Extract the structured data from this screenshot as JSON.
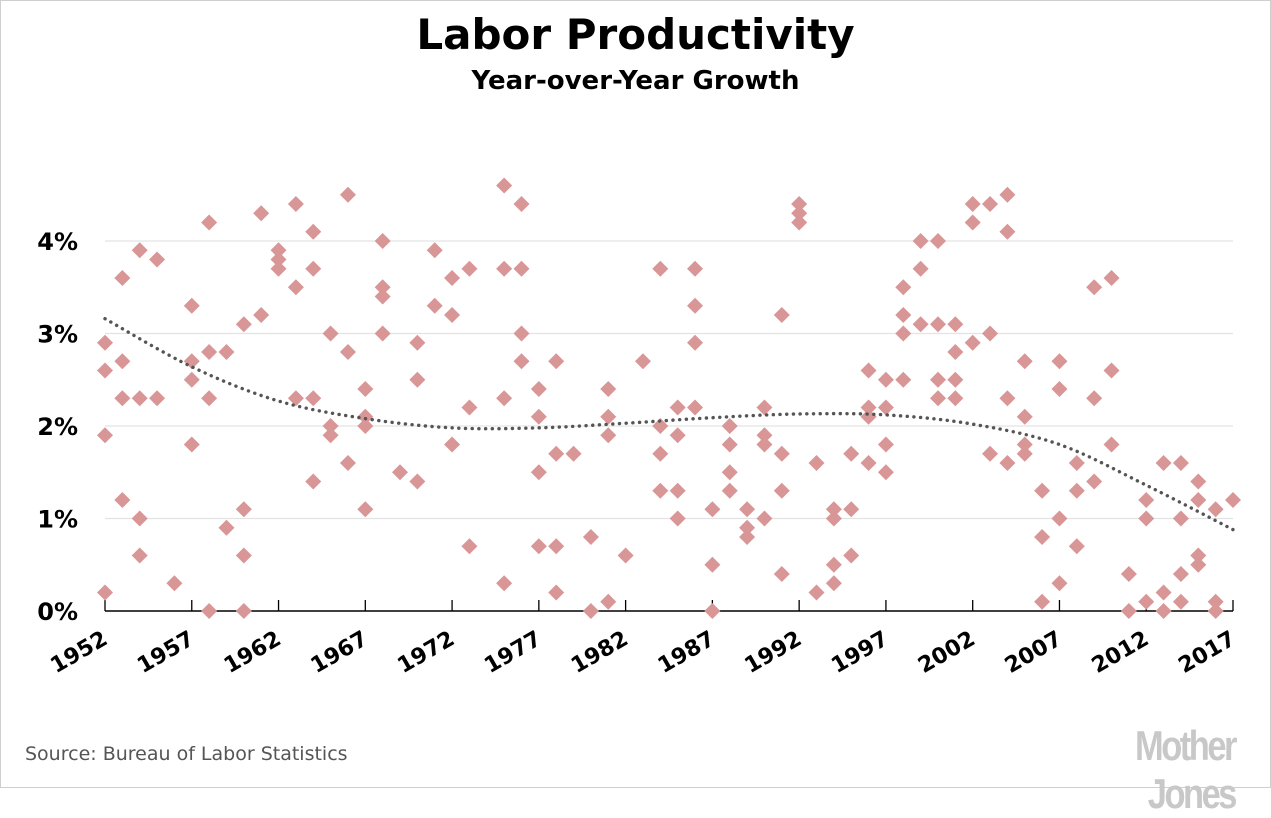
{
  "header": {
    "title": "Labor Productivity",
    "subtitle": "Year-over-Year Growth"
  },
  "footer": {
    "source": "Source: Bureau of Labor Statistics",
    "logo": "Mother Jones"
  },
  "colors": {
    "marker": "#d99696",
    "trend": "#555555",
    "grid": "#e3e3e3",
    "axis": "#000000"
  },
  "chart_data": {
    "type": "scatter",
    "title": "Labor Productivity",
    "subtitle": "Year-over-Year Growth",
    "xlabel": "",
    "ylabel": "",
    "xlim": [
      1952,
      2017
    ],
    "ylim": [
      0,
      4
    ],
    "grid": true,
    "legend": "none",
    "y_ticks": [
      {
        "value": 0,
        "label": "0%"
      },
      {
        "value": 1,
        "label": "1%"
      },
      {
        "value": 2,
        "label": "2%"
      },
      {
        "value": 3,
        "label": "3%"
      },
      {
        "value": 4,
        "label": "4%"
      }
    ],
    "x_ticks": [
      {
        "value": 1952,
        "label": "1952"
      },
      {
        "value": 1957,
        "label": "1957"
      },
      {
        "value": 1962,
        "label": "1962"
      },
      {
        "value": 1967,
        "label": "1967"
      },
      {
        "value": 1972,
        "label": "1972"
      },
      {
        "value": 1977,
        "label": "1977"
      },
      {
        "value": 1982,
        "label": "1982"
      },
      {
        "value": 1987,
        "label": "1987"
      },
      {
        "value": 1992,
        "label": "1992"
      },
      {
        "value": 1997,
        "label": "1997"
      },
      {
        "value": 2002,
        "label": "2002"
      },
      {
        "value": 2007,
        "label": "2007"
      },
      {
        "value": 2012,
        "label": "2012"
      },
      {
        "value": 2017,
        "label": "2017"
      }
    ],
    "series": [
      {
        "name": "Quarterly year-over-year growth (%)",
        "marker": "diamond",
        "points_by_year": [
          {
            "year": 1952,
            "values": [
              2.9,
              2.6,
              1.9,
              0.2
            ]
          },
          {
            "year": 1953,
            "values": [
              3.6,
              2.7,
              2.3,
              1.2
            ]
          },
          {
            "year": 1954,
            "values": [
              3.9,
              2.3,
              1.0,
              0.6
            ]
          },
          {
            "year": 1955,
            "values": [
              3.8,
              2.3
            ]
          },
          {
            "year": 1956,
            "values": [
              0.3
            ]
          },
          {
            "year": 1957,
            "values": [
              3.3,
              2.7,
              2.5,
              1.8
            ]
          },
          {
            "year": 1958,
            "values": [
              4.2,
              2.8,
              2.3,
              0.0
            ]
          },
          {
            "year": 1959,
            "values": [
              2.8,
              0.9
            ]
          },
          {
            "year": 1960,
            "values": [
              3.1,
              1.1,
              0.6,
              0.0
            ]
          },
          {
            "year": 1961,
            "values": [
              4.3,
              3.2
            ]
          },
          {
            "year": 1962,
            "values": [
              3.9,
              3.8,
              3.7
            ]
          },
          {
            "year": 1963,
            "values": [
              4.4,
              3.5,
              2.3
            ]
          },
          {
            "year": 1964,
            "values": [
              4.1,
              3.7,
              2.3,
              1.4
            ]
          },
          {
            "year": 1965,
            "values": [
              3.0,
              2.0,
              1.9
            ]
          },
          {
            "year": 1966,
            "values": [
              4.5,
              2.8,
              1.6
            ]
          },
          {
            "year": 1967,
            "values": [
              2.4,
              2.1,
              2.0,
              1.1
            ]
          },
          {
            "year": 1968,
            "values": [
              4.0,
              3.5,
              3.4,
              3.0
            ]
          },
          {
            "year": 1969,
            "values": [
              1.5
            ]
          },
          {
            "year": 1970,
            "values": [
              2.9,
              2.5,
              1.4
            ]
          },
          {
            "year": 1971,
            "values": [
              3.9,
              3.3
            ]
          },
          {
            "year": 1972,
            "values": [
              3.6,
              3.2,
              1.8
            ]
          },
          {
            "year": 1973,
            "values": [
              3.7,
              2.2,
              0.7
            ]
          },
          {
            "year": 1975,
            "values": [
              4.6,
              3.7,
              2.3,
              0.3
            ]
          },
          {
            "year": 1976,
            "values": [
              4.4,
              3.7,
              3.0,
              2.7
            ]
          },
          {
            "year": 1977,
            "values": [
              2.4,
              2.1,
              1.5,
              0.7
            ]
          },
          {
            "year": 1978,
            "values": [
              2.7,
              1.7,
              0.7,
              0.2
            ]
          },
          {
            "year": 1979,
            "values": [
              1.7
            ]
          },
          {
            "year": 1980,
            "values": [
              0.8,
              0.0
            ]
          },
          {
            "year": 1981,
            "values": [
              2.4,
              2.1,
              1.9,
              0.1
            ]
          },
          {
            "year": 1982,
            "values": [
              0.6
            ]
          },
          {
            "year": 1983,
            "values": [
              2.7
            ]
          },
          {
            "year": 1984,
            "values": [
              3.7,
              2.0,
              1.7,
              1.3
            ]
          },
          {
            "year": 1985,
            "values": [
              2.2,
              1.9,
              1.3,
              1.0
            ]
          },
          {
            "year": 1986,
            "values": [
              3.7,
              3.3,
              2.9,
              2.2
            ]
          },
          {
            "year": 1987,
            "values": [
              1.1,
              0.5,
              0.0
            ]
          },
          {
            "year": 1988,
            "values": [
              2.0,
              1.8,
              1.5,
              1.3
            ]
          },
          {
            "year": 1989,
            "values": [
              1.1,
              0.9,
              0.8
            ]
          },
          {
            "year": 1990,
            "values": [
              2.2,
              1.9,
              1.8,
              1.0
            ]
          },
          {
            "year": 1991,
            "values": [
              3.2,
              1.7,
              1.3,
              0.4
            ]
          },
          {
            "year": 1992,
            "values": [
              4.4,
              4.3,
              4.2
            ]
          },
          {
            "year": 1993,
            "values": [
              1.6,
              0.2
            ]
          },
          {
            "year": 1994,
            "values": [
              1.1,
              1.0,
              0.5,
              0.3
            ]
          },
          {
            "year": 1995,
            "values": [
              1.7,
              1.1,
              0.6
            ]
          },
          {
            "year": 1996,
            "values": [
              2.6,
              2.2,
              2.1,
              1.6
            ]
          },
          {
            "year": 1997,
            "values": [
              2.5,
              2.2,
              1.8,
              1.5
            ]
          },
          {
            "year": 1998,
            "values": [
              3.5,
              3.2,
              3.0,
              2.5
            ]
          },
          {
            "year": 1999,
            "values": [
              4.0,
              3.7,
              3.1
            ]
          },
          {
            "year": 2000,
            "values": [
              4.0,
              3.1,
              2.5,
              2.3
            ]
          },
          {
            "year": 2001,
            "values": [
              3.1,
              2.8,
              2.5,
              2.3
            ]
          },
          {
            "year": 2002,
            "values": [
              4.4,
              4.2,
              2.9
            ]
          },
          {
            "year": 2003,
            "values": [
              4.4,
              3.0,
              1.7
            ]
          },
          {
            "year": 2004,
            "values": [
              4.5,
              4.1,
              2.3,
              1.6
            ]
          },
          {
            "year": 2005,
            "values": [
              2.7,
              2.1,
              1.8,
              1.7
            ]
          },
          {
            "year": 2006,
            "values": [
              1.3,
              0.8,
              0.1
            ]
          },
          {
            "year": 2007,
            "values": [
              2.7,
              2.4,
              1.0,
              0.3
            ]
          },
          {
            "year": 2008,
            "values": [
              1.6,
              1.3,
              0.7
            ]
          },
          {
            "year": 2009,
            "values": [
              3.5,
              2.3,
              1.4
            ]
          },
          {
            "year": 2010,
            "values": [
              3.6,
              2.6,
              1.8
            ]
          },
          {
            "year": 2011,
            "values": [
              0.4,
              0.0
            ]
          },
          {
            "year": 2012,
            "values": [
              1.2,
              1.0,
              0.1
            ]
          },
          {
            "year": 2013,
            "values": [
              1.6,
              0.2,
              0.0
            ]
          },
          {
            "year": 2014,
            "values": [
              1.6,
              1.0,
              0.4,
              0.1
            ]
          },
          {
            "year": 2015,
            "values": [
              1.4,
              1.2,
              0.6,
              0.5
            ]
          },
          {
            "year": 2016,
            "values": [
              1.1,
              0.1,
              0.0
            ]
          },
          {
            "year": 2017,
            "values": [
              1.2
            ]
          }
        ]
      },
      {
        "name": "Trend",
        "style": "dotted",
        "x": [
          1952,
          1957,
          1962,
          1967,
          1972,
          1977,
          1982,
          1987,
          1992,
          1997,
          2002,
          2007,
          2012,
          2017
        ],
        "y": [
          3.16,
          2.64,
          2.27,
          2.08,
          1.98,
          1.98,
          2.03,
          2.09,
          2.13,
          2.12,
          2.02,
          1.8,
          1.36,
          0.88
        ]
      }
    ]
  }
}
